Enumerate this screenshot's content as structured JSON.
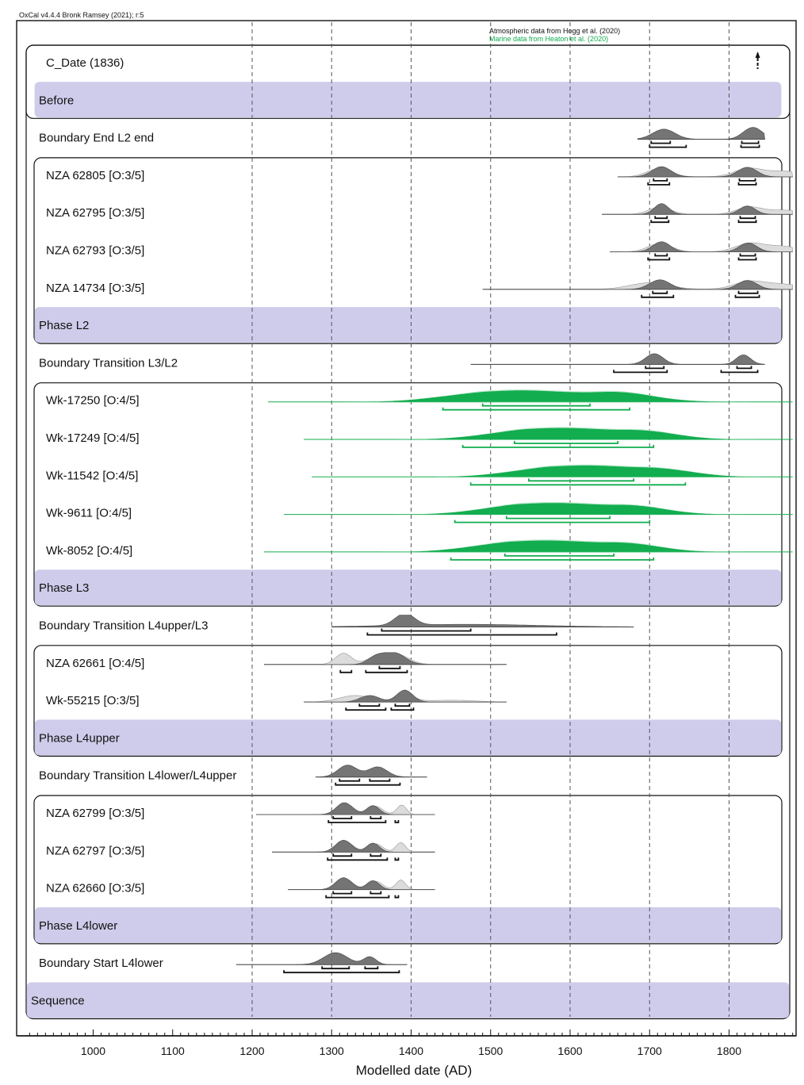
{
  "header": "OxCal v4.4.4 Bronk Ramsey (2021); r:5",
  "credits": {
    "atmospheric": "Atmospheric data from Hogg et al. (2020)",
    "marine": "Marine data from Heaton et al. (2020)"
  },
  "colors": {
    "posterior": "#6e6e6e",
    "likelihood": "#dcdcdc",
    "marine": "#12ad4f",
    "marine_light": "#bfe9cf",
    "phase_band": "#ceccea",
    "range": "#111111"
  },
  "chart_data": {
    "type": "area",
    "title": "",
    "xlabel": "Modelled date (AD)",
    "ylabel": "",
    "xlim": [
      918,
      1880
    ],
    "xticks": [
      1000,
      1100,
      1200,
      1300,
      1400,
      1500,
      1600,
      1700,
      1800
    ],
    "grid": true,
    "rows": [
      {
        "label": "C_Date (1836)",
        "kind": "point",
        "x": 1836
      },
      {
        "label": "Before",
        "kind": "band"
      },
      {
        "label": "Boundary End L2 end",
        "kind": "boundary",
        "peaks": [
          [
            1718,
            14,
            0.85
          ],
          [
            1830,
            12,
            1
          ]
        ],
        "line": [
          1685,
          1845
        ],
        "ranges": [
          [
            [
              1702,
              1726
            ],
            [
              1816,
              1837
            ]
          ],
          [
            [
              1700,
              1746
            ],
            [
              1815,
              1838
            ]
          ]
        ]
      },
      {
        "label": "NZA 62805 [O:3/5]",
        "kind": "date",
        "peaks": [
          [
            1715,
            12,
            0.85
          ],
          [
            1823,
            12,
            0.8
          ]
        ],
        "prior": [
          [
            1712,
            15,
            0.7
          ],
          [
            1825,
            18,
            0.7
          ],
          [
            1870,
            20,
            0.45
          ]
        ],
        "line": [
          1660,
          1880
        ],
        "ranges": [
          [
            [
              1705,
              1722
            ],
            [
              1813,
              1833
            ]
          ],
          [
            [
              1698,
              1725
            ],
            [
              1812,
              1834
            ]
          ]
        ]
      },
      {
        "label": "NZA 62795 [O:3/5]",
        "kind": "date",
        "peaks": [
          [
            1715,
            9,
            0.9
          ],
          [
            1823,
            10,
            0.7
          ]
        ],
        "prior": [
          [
            1713,
            14,
            0.6
          ],
          [
            1825,
            16,
            0.6
          ],
          [
            1868,
            20,
            0.35
          ]
        ],
        "line": [
          1640,
          1880
        ],
        "ranges": [
          [
            [
              1707,
              1722
            ],
            [
              1814,
              1833
            ]
          ],
          [
            [
              1702,
              1724
            ],
            [
              1812,
              1834
            ]
          ]
        ]
      },
      {
        "label": "NZA 62793 [O:3/5]",
        "kind": "date",
        "peaks": [
          [
            1715,
            11,
            0.85
          ],
          [
            1824,
            11,
            0.75
          ]
        ],
        "prior": [
          [
            1713,
            15,
            0.7
          ],
          [
            1826,
            18,
            0.7
          ],
          [
            1868,
            20,
            0.45
          ]
        ],
        "line": [
          1650,
          1880
        ],
        "ranges": [
          [
            [
              1707,
              1722
            ],
            [
              1814,
              1833
            ]
          ],
          [
            [
              1698,
              1725
            ],
            [
              1812,
              1834
            ]
          ]
        ]
      },
      {
        "label": "NZA 14734 [O:3/5]",
        "kind": "date",
        "peaks": [
          [
            1713,
            13,
            0.8
          ],
          [
            1823,
            12,
            0.75
          ]
        ],
        "prior": [
          [
            1700,
            25,
            0.55
          ],
          [
            1826,
            20,
            0.65
          ],
          [
            1870,
            22,
            0.4
          ]
        ],
        "line": [
          1490,
          1880
        ],
        "ranges": [
          [
            [
              1704,
              1722
            ],
            [
              1812,
              1836
            ]
          ],
          [
            [
              1690,
              1730
            ],
            [
              1808,
              1838
            ]
          ]
        ]
      },
      {
        "label": "Phase L2",
        "kind": "band"
      },
      {
        "label": "Boundary Transition L3/L2",
        "kind": "boundary",
        "peaks": [
          [
            1706,
            11,
            0.9
          ],
          [
            1818,
            9,
            0.8
          ]
        ],
        "line": [
          1475,
          1845
        ],
        "ranges": [
          [
            [
              1695,
              1718
            ],
            [
              1810,
              1828
            ]
          ],
          [
            [
              1655,
              1722
            ],
            [
              1790,
              1836
            ]
          ]
        ]
      },
      {
        "label": "Wk-17250 [O:4/5]",
        "kind": "marine",
        "plateau": [
          1500,
          1640
        ],
        "sigma": 55,
        "line": [
          1220,
          1880
        ],
        "ranges": [
          [
            [
              1490,
              1625
            ]
          ],
          [
            [
              1440,
              1675
            ]
          ]
        ]
      },
      {
        "label": "Wk-17249 [O:4/5]",
        "kind": "marine",
        "plateau": [
          1550,
          1670
        ],
        "sigma": 50,
        "line": [
          1265,
          1880
        ],
        "ranges": [
          [
            [
              1530,
              1660
            ]
          ],
          [
            [
              1465,
              1705
            ]
          ]
        ]
      },
      {
        "label": "Wk-11542 [O:4/5]",
        "kind": "marine",
        "plateau": [
          1580,
          1690
        ],
        "sigma": 50,
        "line": [
          1275,
          1880
        ],
        "ranges": [
          [
            [
              1548,
              1680
            ]
          ],
          [
            [
              1475,
              1745
            ]
          ]
        ]
      },
      {
        "label": "Wk-9611 [O:4/5]",
        "kind": "marine",
        "plateau": [
          1540,
          1660
        ],
        "sigma": 48,
        "line": [
          1240,
          1880
        ],
        "ranges": [
          [
            [
              1520,
              1650
            ]
          ],
          [
            [
              1455,
              1700
            ]
          ]
        ]
      },
      {
        "label": "Wk-8052 [O:4/5]",
        "kind": "marine",
        "plateau": [
          1530,
          1650
        ],
        "sigma": 50,
        "line": [
          1215,
          1880
        ],
        "ranges": [
          [
            [
              1518,
              1655
            ]
          ],
          [
            [
              1450,
              1705
            ]
          ]
        ]
      },
      {
        "label": "Phase L3",
        "kind": "band"
      },
      {
        "label": "Boundary Transition L4upper/L3",
        "kind": "boundary",
        "peaks": [
          [
            1392,
            12,
            1
          ],
          [
            1470,
            90,
            0.22
          ]
        ],
        "line": [
          1300,
          1680
        ],
        "ranges": [
          [
            [
              1363,
              1475
            ]
          ],
          [
            [
              1345,
              1583
            ]
          ]
        ]
      },
      {
        "label": "NZA 62661 [O:4/5]",
        "kind": "date",
        "peaks": [
          [
            1378,
            14,
            1
          ],
          [
            1355,
            10,
            0.55
          ]
        ],
        "prior": [
          [
            1315,
            10,
            0.95
          ],
          [
            1380,
            16,
            0.9
          ],
          [
            1355,
            12,
            0.5
          ]
        ],
        "line": [
          1215,
          1520
        ],
        "ranges": [
          [
            [
              1360,
              1386
            ]
          ],
          [
            [
              1311,
              1325
            ],
            [
              1343,
              1395
            ]
          ]
        ]
      },
      {
        "label": "Wk-55215 [O:3/5]",
        "kind": "date",
        "peaks": [
          [
            1392,
            10,
            1
          ],
          [
            1348,
            12,
            0.55
          ]
        ],
        "prior": [
          [
            1330,
            20,
            0.55
          ],
          [
            1392,
            12,
            0.6
          ],
          [
            1450,
            30,
            0.15
          ]
        ],
        "line": [
          1265,
          1520
        ],
        "ranges": [
          [
            [
              1335,
              1360
            ],
            [
              1380,
              1398
            ]
          ],
          [
            [
              1318,
              1368
            ],
            [
              1375,
              1403
            ]
          ]
        ]
      },
      {
        "label": "Phase L4upper",
        "kind": "band"
      },
      {
        "label": "Boundary Transition L4lower/L4upper",
        "kind": "boundary",
        "peaks": [
          [
            1320,
            12,
            1
          ],
          [
            1358,
            12,
            0.85
          ]
        ],
        "line": [
          1280,
          1420
        ],
        "ranges": [
          [
            [
              1310,
              1335
            ],
            [
              1348,
              1373
            ]
          ],
          [
            [
              1305,
              1386
            ]
          ]
        ]
      },
      {
        "label": "NZA 62799 [O:3/5]",
        "kind": "date",
        "peaks": [
          [
            1316,
            10,
            1
          ],
          [
            1352,
            8,
            0.75
          ]
        ],
        "prior": [
          [
            1318,
            10,
            0.9
          ],
          [
            1355,
            9,
            0.7
          ],
          [
            1388,
            6,
            0.8
          ]
        ],
        "line": [
          1205,
          1430
        ],
        "ranges": [
          [
            [
              1302,
              1325
            ],
            [
              1349,
              1362
            ]
          ],
          [
            [
              1296,
              1368
            ],
            [
              1380,
              1384
            ]
          ]
        ]
      },
      {
        "label": "NZA 62797 [O:3/5]",
        "kind": "date",
        "peaks": [
          [
            1315,
            10,
            1
          ],
          [
            1352,
            8,
            0.75
          ]
        ],
        "prior": [
          [
            1317,
            10,
            0.9
          ],
          [
            1355,
            9,
            0.7
          ],
          [
            1387,
            6,
            0.8
          ]
        ],
        "line": [
          1225,
          1430
        ],
        "ranges": [
          [
            [
              1302,
              1325
            ],
            [
              1349,
              1362
            ]
          ],
          [
            [
              1295,
              1370
            ],
            [
              1380,
              1384
            ]
          ]
        ]
      },
      {
        "label": "NZA 62660 [O:3/5]",
        "kind": "date",
        "peaks": [
          [
            1315,
            10,
            1
          ],
          [
            1352,
            8,
            0.75
          ]
        ],
        "prior": [
          [
            1317,
            10,
            0.9
          ],
          [
            1355,
            9,
            0.7
          ],
          [
            1387,
            6,
            0.8
          ]
        ],
        "line": [
          1245,
          1430
        ],
        "ranges": [
          [
            [
              1302,
              1325
            ],
            [
              1349,
              1362
            ]
          ],
          [
            [
              1293,
              1372
            ],
            [
              1380,
              1384
            ]
          ]
        ]
      },
      {
        "label": "Phase L4lower",
        "kind": "band"
      },
      {
        "label": "Boundary Start L4lower",
        "kind": "boundary",
        "peaks": [
          [
            1305,
            15,
            1
          ],
          [
            1348,
            8,
            0.65
          ]
        ],
        "line": [
          1180,
          1395
        ],
        "ranges": [
          [
            [
              1288,
              1322
            ],
            [
              1342,
              1358
            ]
          ],
          [
            [
              1240,
              1385
            ]
          ]
        ]
      },
      {
        "label": "Sequence",
        "kind": "band"
      }
    ]
  }
}
